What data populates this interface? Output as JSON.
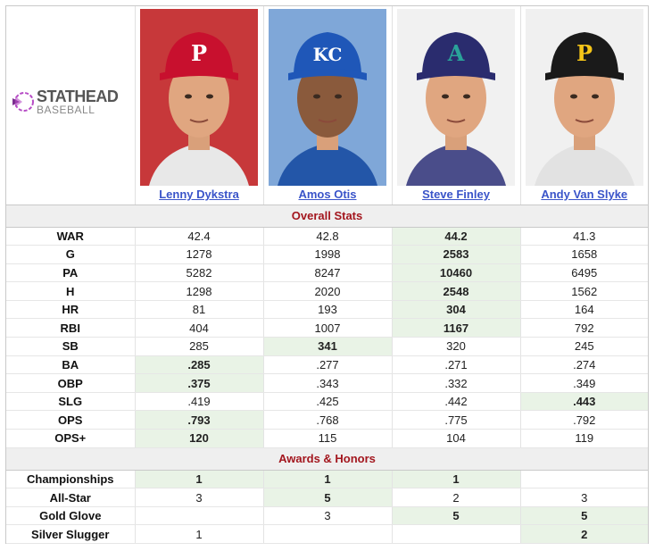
{
  "logo": {
    "word_top": "STATHEAD",
    "word_bottom": "BASEBALL"
  },
  "players": [
    {
      "name": "Lenny Dykstra",
      "cap_letter": "P",
      "cap_color": "#c8102e",
      "letter_color": "#ffffff"
    },
    {
      "name": "Amos Otis",
      "cap_letter": "KC",
      "cap_color": "#1f57b8",
      "letter_color": "#ffffff"
    },
    {
      "name": "Steve Finley",
      "cap_letter": "A",
      "cap_color": "#2a2c6e",
      "letter_color": "#2aa39a"
    },
    {
      "name": "Andy Van Slyke",
      "cap_letter": "P",
      "cap_color": "#1a1a1a",
      "letter_color": "#f5c518"
    }
  ],
  "sections": [
    {
      "title": "Overall Stats",
      "rows": [
        {
          "label": "WAR",
          "values": [
            "42.4",
            "42.8",
            "44.2",
            "41.3"
          ],
          "best": [
            2
          ]
        },
        {
          "label": "G",
          "values": [
            "1278",
            "1998",
            "2583",
            "1658"
          ],
          "best": [
            2
          ]
        },
        {
          "label": "PA",
          "values": [
            "5282",
            "8247",
            "10460",
            "6495"
          ],
          "best": [
            2
          ]
        },
        {
          "label": "H",
          "values": [
            "1298",
            "2020",
            "2548",
            "1562"
          ],
          "best": [
            2
          ]
        },
        {
          "label": "HR",
          "values": [
            "81",
            "193",
            "304",
            "164"
          ],
          "best": [
            2
          ]
        },
        {
          "label": "RBI",
          "values": [
            "404",
            "1007",
            "1167",
            "792"
          ],
          "best": [
            2
          ]
        },
        {
          "label": "SB",
          "values": [
            "285",
            "341",
            "320",
            "245"
          ],
          "best": [
            1
          ]
        },
        {
          "label": "BA",
          "values": [
            ".285",
            ".277",
            ".271",
            ".274"
          ],
          "best": [
            0
          ]
        },
        {
          "label": "OBP",
          "values": [
            ".375",
            ".343",
            ".332",
            ".349"
          ],
          "best": [
            0
          ]
        },
        {
          "label": "SLG",
          "values": [
            ".419",
            ".425",
            ".442",
            ".443"
          ],
          "best": [
            3
          ]
        },
        {
          "label": "OPS",
          "values": [
            ".793",
            ".768",
            ".775",
            ".792"
          ],
          "best": [
            0
          ]
        },
        {
          "label": "OPS+",
          "values": [
            "120",
            "115",
            "104",
            "119"
          ],
          "best": [
            0
          ]
        }
      ]
    },
    {
      "title": "Awards & Honors",
      "rows": [
        {
          "label": "Championships",
          "values": [
            "1",
            "1",
            "1",
            ""
          ],
          "best": [
            0,
            1,
            2
          ]
        },
        {
          "label": "All-Star",
          "values": [
            "3",
            "5",
            "2",
            "3"
          ],
          "best": [
            1
          ]
        },
        {
          "label": "Gold Glove",
          "values": [
            "",
            "3",
            "5",
            "5"
          ],
          "best": [
            2,
            3
          ]
        },
        {
          "label": "Silver Slugger",
          "values": [
            "1",
            "",
            "",
            "2"
          ],
          "best": [
            3
          ]
        }
      ]
    }
  ],
  "colors": {
    "best_bg": "#e9f3e6",
    "section_text": "#a3161e",
    "link": "#3a54c9"
  }
}
